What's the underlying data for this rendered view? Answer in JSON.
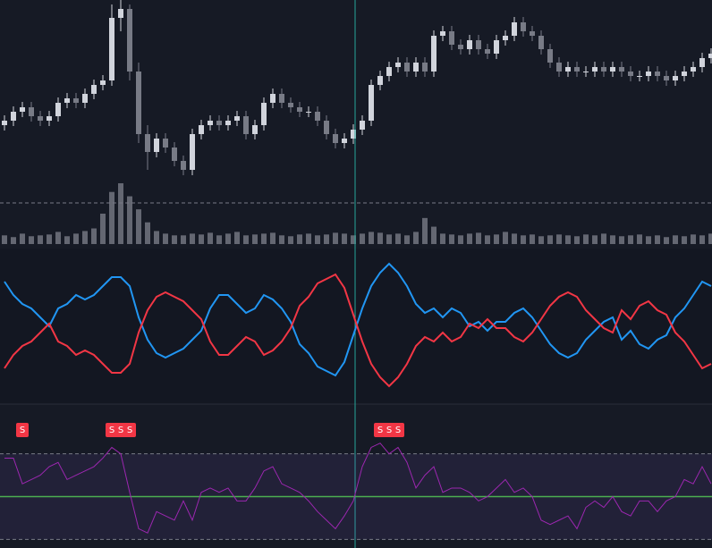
{
  "chart_data": [
    {
      "type": "candlestick",
      "open": [
        90,
        95,
        105,
        110,
        100,
        95,
        100,
        115,
        120,
        115,
        125,
        135,
        140,
        210,
        220,
        150,
        80,
        60,
        75,
        65,
        50,
        40,
        80,
        90,
        95,
        90,
        95,
        100,
        80,
        90,
        115,
        125,
        115,
        110,
        105,
        105,
        95,
        80,
        70,
        75,
        85,
        95,
        135,
        145,
        155,
        160,
        150,
        160,
        150,
        190,
        195,
        180,
        175,
        185,
        175,
        170,
        185,
        190,
        205,
        195,
        190,
        175,
        160,
        150,
        155,
        150,
        150,
        155,
        150,
        155,
        150,
        145,
        145,
        150,
        145,
        140,
        145,
        150,
        155,
        165
      ],
      "high": [
        101,
        111,
        116,
        116,
        106,
        106,
        121,
        126,
        126,
        131,
        141,
        146,
        225,
        230,
        225,
        160,
        90,
        81,
        81,
        71,
        56,
        86,
        96,
        101,
        101,
        101,
        106,
        106,
        96,
        121,
        131,
        131,
        121,
        116,
        111,
        111,
        101,
        86,
        81,
        91,
        101,
        141,
        151,
        161,
        166,
        166,
        166,
        166,
        196,
        201,
        201,
        186,
        191,
        191,
        181,
        191,
        196,
        211,
        211,
        201,
        196,
        181,
        166,
        161,
        161,
        156,
        161,
        161,
        161,
        161,
        156,
        151,
        156,
        156,
        151,
        151,
        156,
        161,
        171,
        176
      ],
      "low": [
        84,
        89,
        99,
        94,
        89,
        89,
        94,
        109,
        109,
        109,
        119,
        129,
        134,
        195,
        140,
        70,
        40,
        54,
        59,
        44,
        34,
        34,
        74,
        84,
        84,
        84,
        89,
        74,
        74,
        84,
        109,
        109,
        104,
        99,
        99,
        89,
        74,
        64,
        64,
        69,
        79,
        89,
        129,
        139,
        149,
        144,
        144,
        144,
        144,
        184,
        174,
        169,
        169,
        169,
        164,
        164,
        179,
        184,
        189,
        184,
        169,
        154,
        144,
        144,
        144,
        144,
        144,
        144,
        144,
        144,
        139,
        139,
        139,
        139,
        134,
        134,
        139,
        144,
        149,
        159
      ],
      "close": [
        95,
        105,
        110,
        100,
        95,
        100,
        115,
        120,
        115,
        125,
        135,
        140,
        210,
        220,
        150,
        80,
        60,
        75,
        65,
        50,
        40,
        80,
        90,
        95,
        90,
        95,
        100,
        80,
        90,
        115,
        125,
        115,
        110,
        105,
        105,
        95,
        80,
        70,
        75,
        85,
        95,
        135,
        145,
        155,
        160,
        150,
        160,
        150,
        190,
        195,
        180,
        175,
        185,
        175,
        170,
        185,
        190,
        205,
        195,
        190,
        175,
        160,
        150,
        155,
        150,
        150,
        155,
        150,
        155,
        150,
        145,
        145,
        150,
        145,
        140,
        145,
        150,
        155,
        165,
        170
      ],
      "volume": [
        10,
        8,
        12,
        9,
        10,
        11,
        14,
        9,
        12,
        15,
        18,
        35,
        60,
        70,
        55,
        40,
        25,
        15,
        12,
        10,
        10,
        12,
        11,
        13,
        10,
        12,
        14,
        10,
        11,
        12,
        13,
        10,
        9,
        11,
        12,
        10,
        11,
        13,
        12,
        10,
        12,
        14,
        13,
        11,
        12,
        10,
        14,
        30,
        20,
        12,
        11,
        10,
        12,
        13,
        10,
        11,
        14,
        12,
        10,
        11,
        9,
        10,
        11,
        10,
        9,
        11,
        10,
        12,
        10,
        9,
        10,
        11,
        9,
        10,
        8,
        10,
        9,
        11,
        10,
        12
      ],
      "ylim": [
        0,
        230
      ],
      "volume_ylim": [
        0,
        70
      ],
      "reference_line": 3,
      "up_color": "#d1d4dc",
      "down_color": "#787b86",
      "volume_color": "#787b86",
      "crosshair_index": 39.2
    },
    {
      "type": "line",
      "series": [
        {
          "name": "Blue",
          "color": "#2196f3",
          "values": [
            51,
            36,
            26,
            21,
            11,
            1,
            21,
            26,
            36,
            31,
            36,
            46,
            56,
            56,
            46,
            11,
            -14,
            -29,
            -34,
            -29,
            -24,
            -14,
            -4,
            21,
            36,
            36,
            26,
            16,
            21,
            36,
            31,
            21,
            6,
            -19,
            -29,
            -44,
            -49,
            -54,
            -39,
            -9,
            21,
            46,
            61,
            71,
            61,
            46,
            26,
            16,
            21,
            11,
            21,
            16,
            1,
            6,
            -4,
            6,
            6,
            16,
            21,
            11,
            -4,
            -19,
            -29,
            -34,
            -29,
            -14,
            -4,
            6,
            11,
            -14,
            -4,
            -19,
            -24,
            -14,
            -9,
            11,
            21,
            36,
            51,
            46
          ]
        },
        {
          "name": "Red",
          "color": "#f23645",
          "values": [
            -46,
            -31,
            -21,
            -16,
            -6,
            4,
            -16,
            -21,
            -31,
            -26,
            -31,
            -41,
            -51,
            -51,
            -41,
            -6,
            19,
            34,
            39,
            34,
            29,
            19,
            9,
            -16,
            -31,
            -31,
            -21,
            -11,
            -16,
            -31,
            -26,
            -16,
            -1,
            24,
            34,
            49,
            54,
            59,
            44,
            14,
            -16,
            -41,
            -56,
            -66,
            -56,
            -41,
            -21,
            -11,
            -16,
            -6,
            -16,
            -11,
            4,
            -1,
            9,
            -1,
            -1,
            -11,
            -16,
            -6,
            9,
            24,
            34,
            39,
            34,
            19,
            9,
            -1,
            -6,
            19,
            9,
            24,
            29,
            19,
            14,
            -6,
            -16,
            -31,
            -46,
            -41
          ]
        }
      ],
      "ylim": [
        -80,
        80
      ]
    },
    {
      "type": "rsi",
      "series": [
        {
          "name": "RSI",
          "color": "#9c27b0",
          "values": [
            68,
            68,
            56,
            58,
            60,
            64,
            66,
            58,
            60,
            62,
            64,
            68,
            73,
            70,
            52,
            35,
            33,
            43,
            41,
            39,
            48,
            39,
            52,
            54,
            52,
            54,
            48,
            48,
            54,
            62,
            64,
            56,
            54,
            52,
            48,
            43,
            39,
            35,
            41,
            48,
            64,
            73,
            75,
            70,
            73,
            66,
            54,
            60,
            64,
            52,
            54,
            54,
            52,
            48,
            50,
            54,
            58,
            52,
            54,
            50,
            39,
            37,
            39,
            41,
            35,
            45,
            48,
            45,
            50,
            43,
            41,
            48,
            48,
            43,
            48,
            50,
            58,
            56,
            64,
            56
          ]
        }
      ],
      "ylim": [
        26,
        92
      ],
      "band": [
        30,
        70
      ],
      "midline": 50,
      "band_color": "#7e57c2",
      "midline_color": "#4caf50",
      "signals": {
        "label": "S",
        "indices": [
          1,
          11,
          12,
          13,
          41,
          42,
          43
        ],
        "color": "#f23645"
      }
    }
  ]
}
